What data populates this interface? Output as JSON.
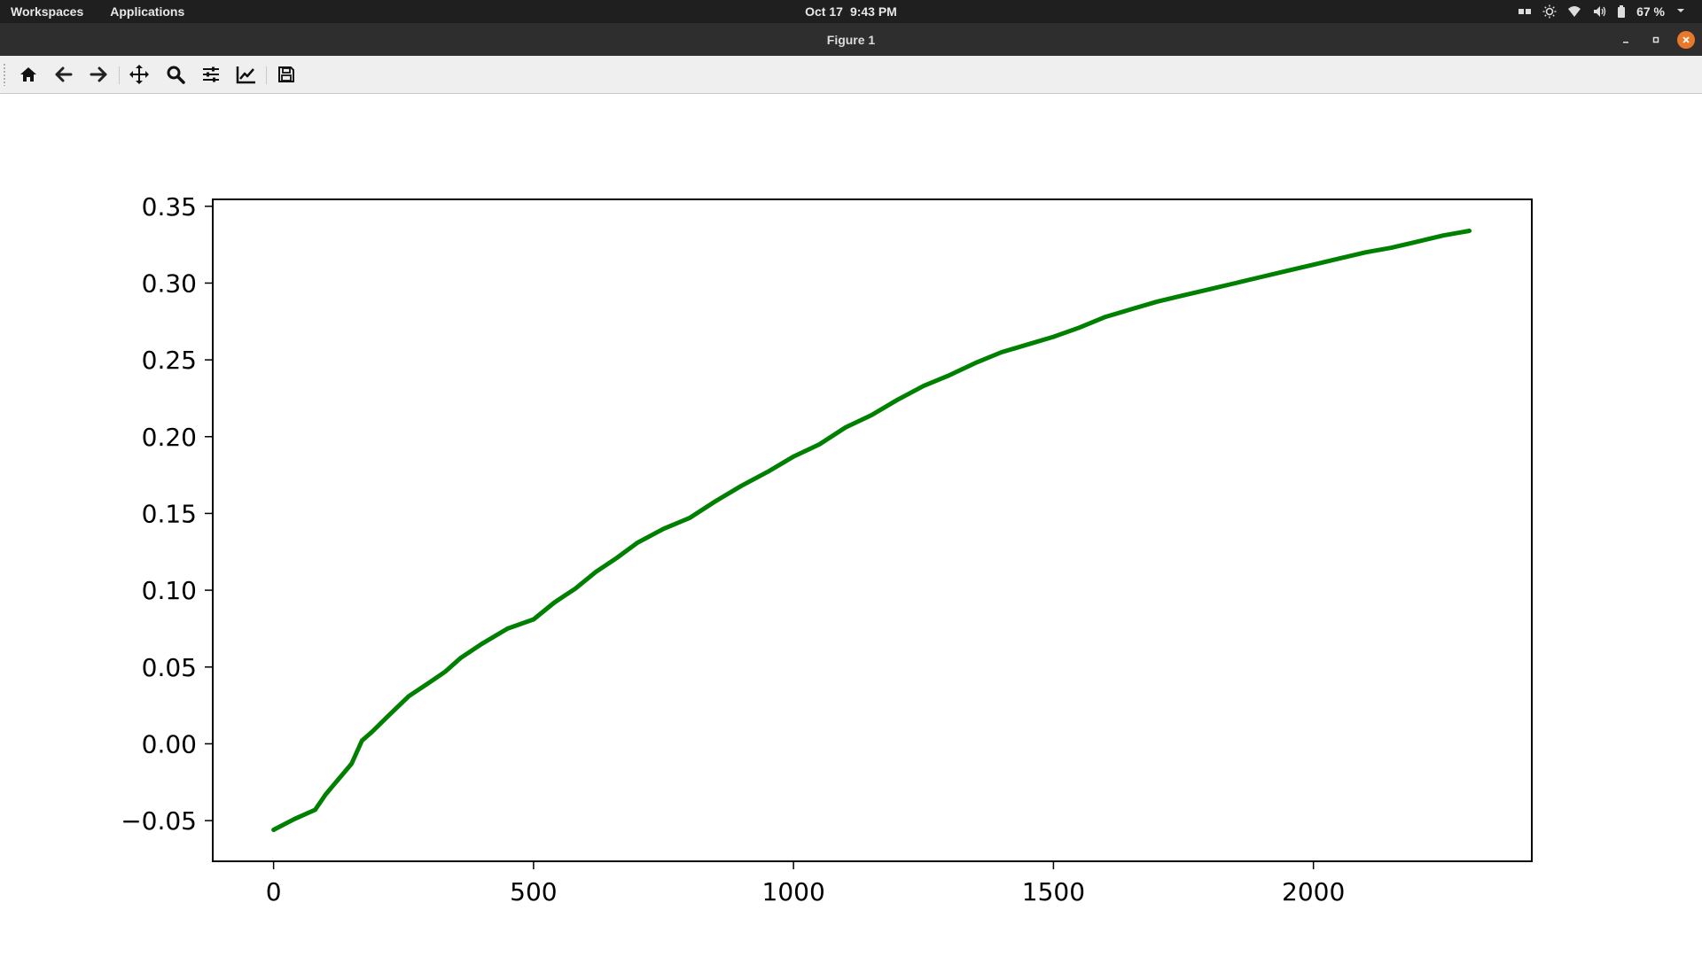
{
  "system_bar": {
    "workspaces": "Workspaces",
    "applications": "Applications",
    "date": "Oct 17",
    "time": "9:43 PM",
    "battery": "67 %"
  },
  "window": {
    "title": "Figure 1"
  },
  "toolbar": {
    "buttons": [
      "home-icon",
      "back-arrow-icon",
      "forward-arrow-icon",
      "pan-icon",
      "zoom-icon",
      "subplots-configure-icon",
      "edit-axis-icon",
      "save-icon"
    ]
  },
  "chart_data": {
    "type": "line",
    "color": "#008000",
    "xlim": [
      -117,
      2420
    ],
    "ylim": [
      -0.0765,
      0.3545
    ],
    "xticks": [
      0,
      500,
      1000,
      1500,
      2000
    ],
    "xtick_labels": [
      "0",
      "500",
      "1000",
      "1500",
      "2000"
    ],
    "yticks": [
      -0.05,
      0.0,
      0.05,
      0.1,
      0.15,
      0.2,
      0.25,
      0.3,
      0.35
    ],
    "ytick_labels": [
      "−0.05",
      "0.00",
      "0.05",
      "0.10",
      "0.15",
      "0.20",
      "0.25",
      "0.30",
      "0.35"
    ],
    "series": [
      {
        "x": [
          0,
          40,
          80,
          100,
          120,
          150,
          170,
          190,
          220,
          260,
          300,
          330,
          360,
          400,
          450,
          500,
          540,
          580,
          620,
          660,
          700,
          750,
          800,
          850,
          900,
          950,
          1000,
          1050,
          1100,
          1150,
          1200,
          1250,
          1300,
          1350,
          1400,
          1450,
          1500,
          1550,
          1600,
          1650,
          1700,
          1750,
          1800,
          1850,
          1900,
          1950,
          2000,
          2050,
          2100,
          2150,
          2200,
          2250,
          2300
        ],
        "y": [
          -0.056,
          -0.049,
          -0.043,
          -0.033,
          -0.025,
          -0.013,
          0.002,
          0.008,
          0.018,
          0.031,
          0.04,
          0.047,
          0.056,
          0.065,
          0.075,
          0.081,
          0.092,
          0.101,
          0.112,
          0.121,
          0.131,
          0.14,
          0.147,
          0.158,
          0.168,
          0.177,
          0.187,
          0.195,
          0.206,
          0.214,
          0.224,
          0.233,
          0.24,
          0.248,
          0.255,
          0.26,
          0.265,
          0.271,
          0.278,
          0.283,
          0.288,
          0.292,
          0.296,
          0.3,
          0.304,
          0.308,
          0.312,
          0.316,
          0.32,
          0.323,
          0.327,
          0.331,
          0.334
        ]
      }
    ]
  }
}
